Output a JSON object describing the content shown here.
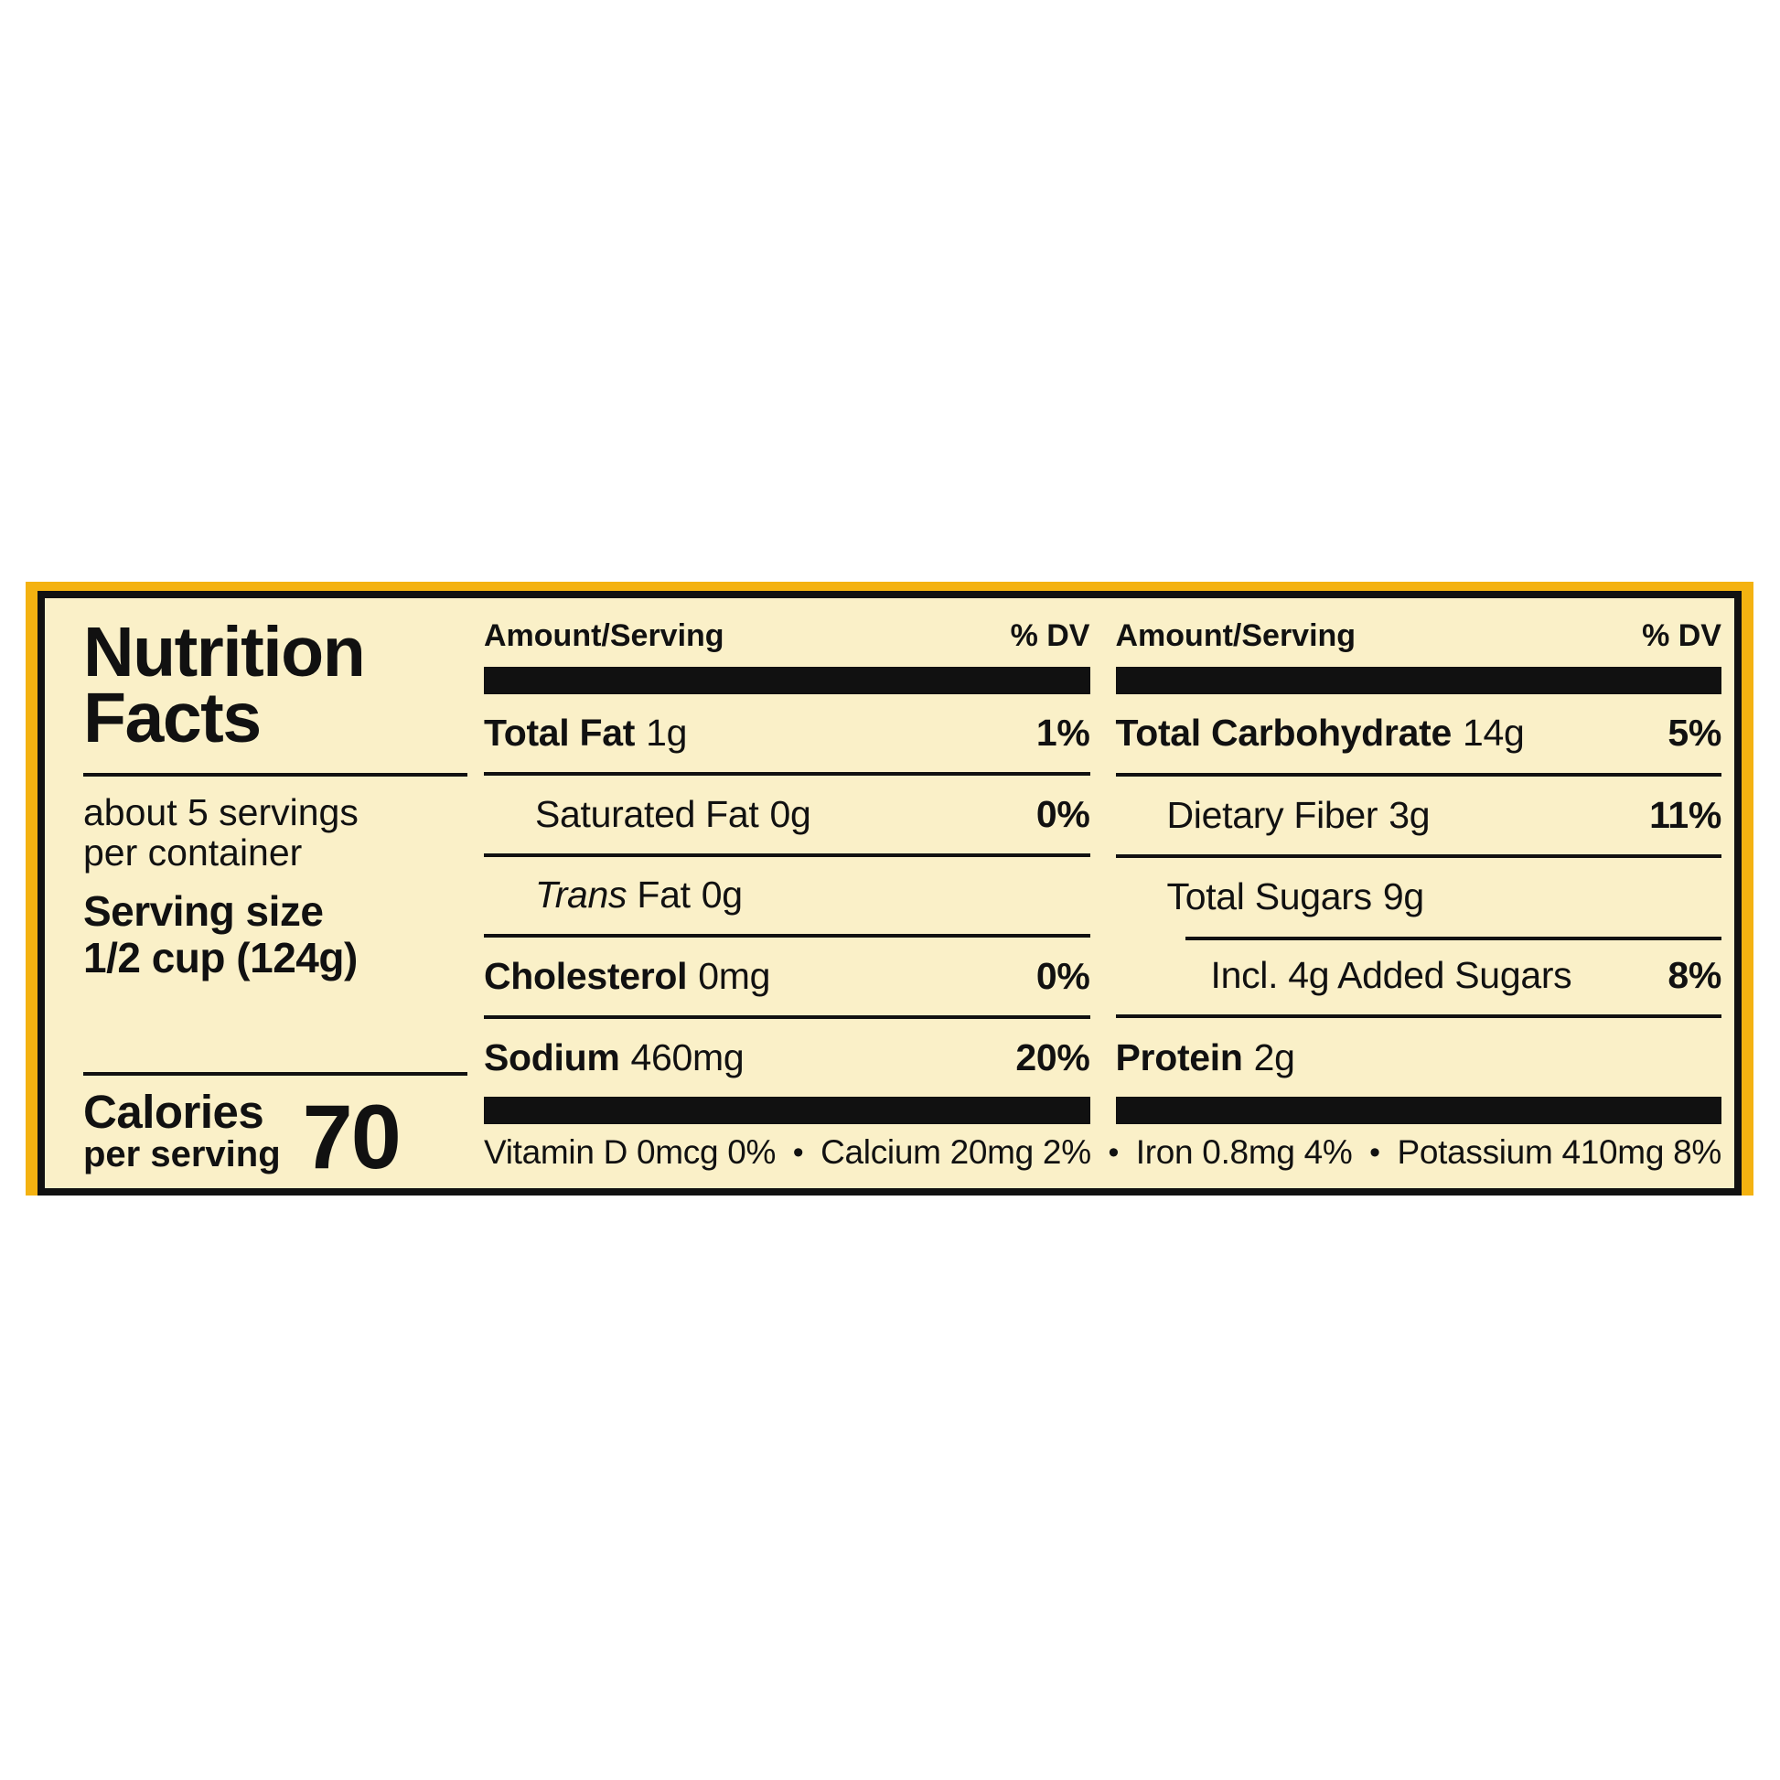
{
  "title": {
    "line1": "Nutrition",
    "line2": "Facts"
  },
  "servings": {
    "line1": "about 5 servings",
    "line2": "per container"
  },
  "serving_size": {
    "label": "Serving size",
    "value": "1/2 cup (124g)"
  },
  "calories": {
    "label": "Calories",
    "sublabel": "per serving",
    "value": "70"
  },
  "headers": {
    "amount": "Amount/Serving",
    "dv": "% DV"
  },
  "rows": {
    "mid": [
      {
        "name": "Total Fat",
        "value": "1g",
        "dv": "1%"
      },
      {
        "name": "Saturated Fat",
        "value": "0g",
        "dv": "0%"
      },
      {
        "name_it": "Trans",
        "name": " Fat",
        "value": "0g",
        "dv": ""
      },
      {
        "name": "Cholesterol",
        "value": "0mg",
        "dv": "0%"
      },
      {
        "name": "Sodium",
        "value": "460mg",
        "dv": "20%"
      }
    ],
    "right": [
      {
        "name": "Total Carbohydrate",
        "value": "14g",
        "dv": "5%"
      },
      {
        "name": "Dietary Fiber",
        "value": "3g",
        "dv": "11%"
      },
      {
        "name": "Total Sugars",
        "value": "9g",
        "dv": ""
      },
      {
        "name": "Incl. 4g Added Sugars",
        "value": "",
        "dv": "8%"
      },
      {
        "name": "Protein",
        "value": "2g",
        "dv": ""
      }
    ]
  },
  "micros": {
    "bullet": "•",
    "items": [
      "Vitamin D 0mcg 0%",
      "Calcium 20mg 2%",
      "Iron 0.8mg 4%",
      "Potassium 410mg 8%"
    ]
  },
  "colors": {
    "frame_yellow": "#F4B211",
    "panel_cream": "#FAF0C8",
    "text_black": "#111111"
  }
}
